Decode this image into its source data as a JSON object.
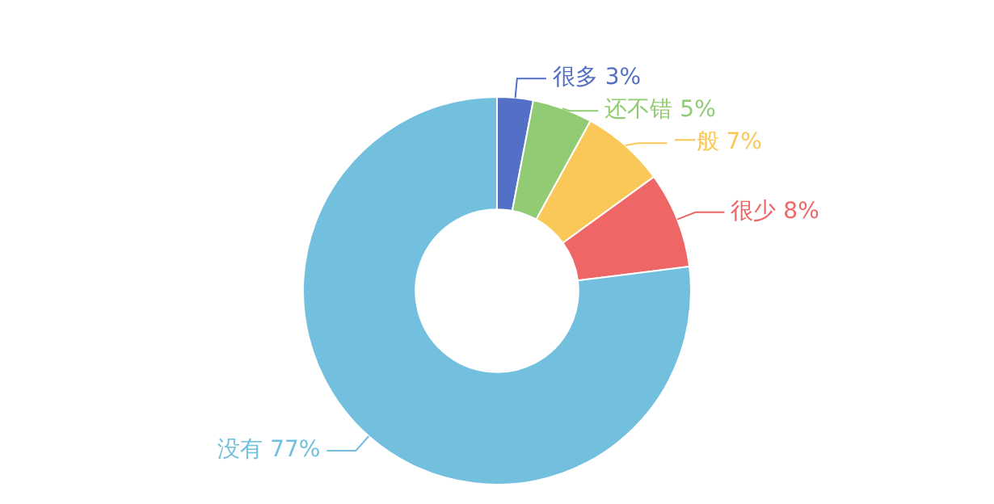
{
  "chart_data": {
    "type": "donut",
    "categories": [
      "很多",
      "还不错",
      "一般",
      "很少",
      "没有"
    ],
    "values": [
      3,
      5,
      7,
      8,
      77
    ],
    "value_labels": [
      "3%",
      "5%",
      "7%",
      "8%",
      "77%"
    ],
    "colors": [
      "#5470c6",
      "#91cc75",
      "#fac858",
      "#ee6666",
      "#73c0de"
    ],
    "legend": false
  }
}
